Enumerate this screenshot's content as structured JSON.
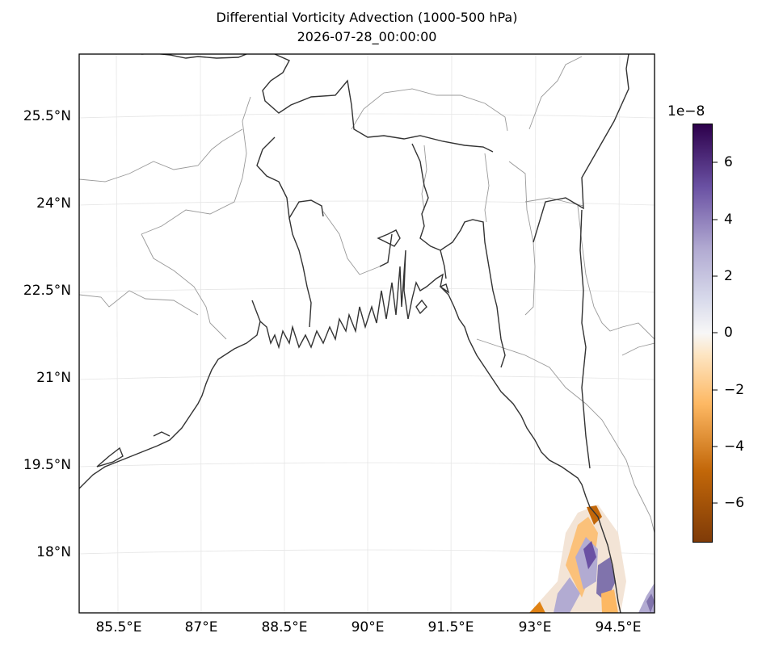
{
  "title": "Differential Vorticity Advection (1000-500 hPa)",
  "subtitle": "2026-07-28_00:00:00",
  "map": {
    "lat_labels": [
      "25.5°N",
      "24°N",
      "22.5°N",
      "21°N",
      "19.5°N",
      "18°N"
    ],
    "lon_labels": [
      "85.5°E",
      "87°E",
      "88.5°E",
      "90°E",
      "91.5°E",
      "93°E",
      "94.5°E"
    ]
  },
  "colorbar": {
    "exponent_label": "1e−8",
    "tick_labels": [
      "6",
      "4",
      "2",
      "0",
      "−2",
      "−4",
      "−6"
    ],
    "colormap": [
      "#7f3b08",
      "#e08214",
      "#fdb863",
      "#f7f7f7",
      "#b2abd2",
      "#8073ac",
      "#2d004b"
    ]
  }
}
